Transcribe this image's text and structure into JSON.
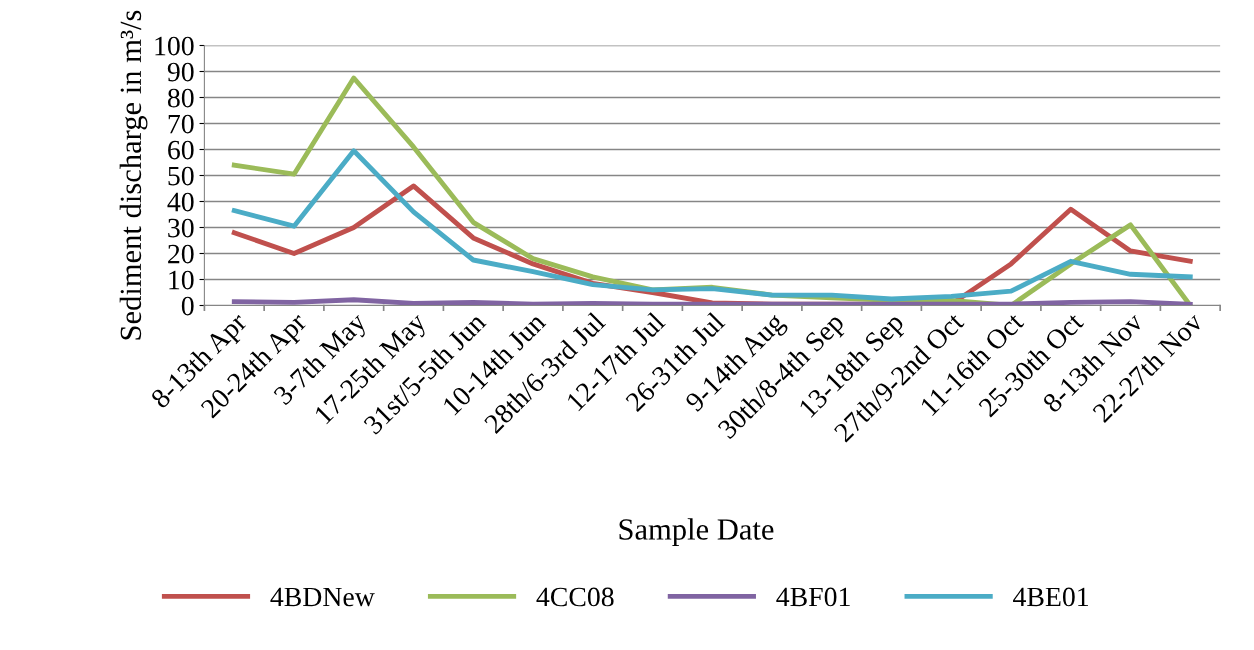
{
  "chart_data": {
    "type": "line",
    "xlabel": "Sample Date",
    "ylabel": "Sediment discharge in m³/s",
    "categories": [
      "8-13th Apr",
      "20-24th Apr",
      "3-7th May",
      "17-25th May",
      "31st/5-5th Jun",
      "10-14th Jun",
      "28th/6-3rd Jul",
      "12-17th Jul",
      "26-31th Jul",
      "9-14th Aug",
      "30th/8-4th Sep",
      "13-18th Sep",
      "27th/9-2nd Oct",
      "11-16th Oct",
      "25-30th Oct",
      "8-13th Nov",
      "22-27th Nov"
    ],
    "series": [
      {
        "name": "4BDNew",
        "color": "#c0504d",
        "values": [
          28,
          20,
          30,
          46,
          26,
          16,
          8.5,
          5,
          1,
          0.5,
          0.5,
          0.5,
          0.5,
          16,
          37,
          21,
          17
        ]
      },
      {
        "name": "4CC08",
        "color": "#9bbb59",
        "values": [
          54,
          50.5,
          87.5,
          61,
          32,
          18,
          11,
          6,
          7,
          4,
          3,
          2,
          2,
          0,
          16,
          31,
          0
        ]
      },
      {
        "name": "4BF01",
        "color": "#8064a2",
        "values": [
          1.5,
          1.2,
          2.2,
          0.8,
          1.2,
          0.5,
          0.8,
          0.5,
          0.5,
          0.5,
          0.5,
          0.5,
          0.5,
          0.5,
          1.2,
          1.5,
          0.5
        ]
      },
      {
        "name": "4BE01",
        "color": "#4bacc6",
        "values": [
          36.5,
          30.5,
          59.5,
          36,
          17.5,
          13,
          8,
          6,
          6.5,
          4,
          4,
          2.5,
          3.5,
          5.5,
          17,
          12,
          11
        ]
      }
    ],
    "ylim": [
      0,
      100
    ],
    "yticks": [
      0,
      10,
      20,
      30,
      40,
      50,
      60,
      70,
      80,
      90,
      100
    ],
    "grid": "y",
    "legend": "bottom",
    "marker": "none",
    "line_style": "solid"
  }
}
